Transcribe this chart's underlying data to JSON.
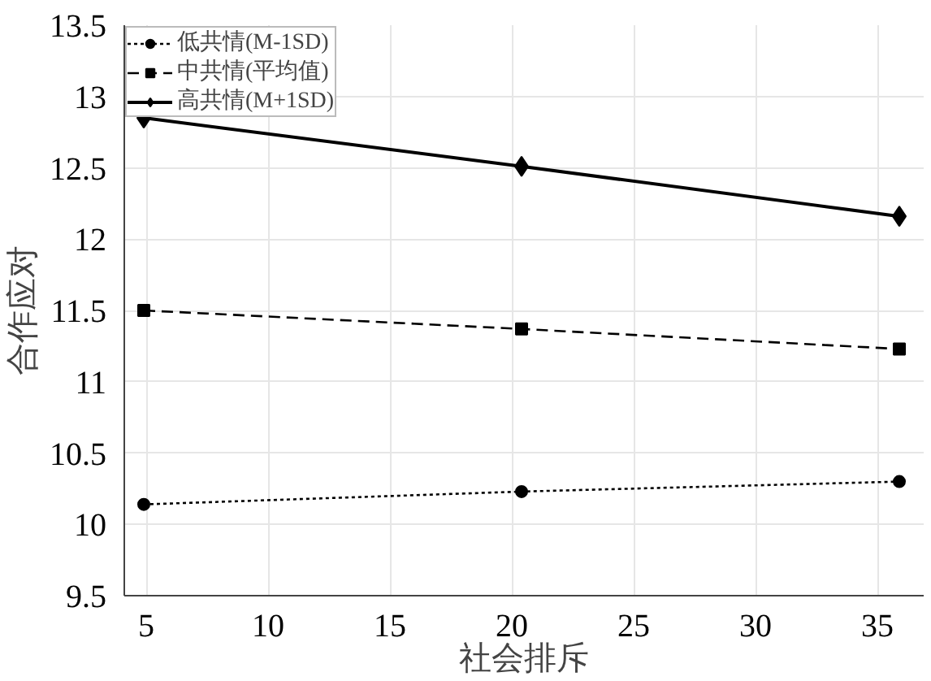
{
  "chart_data": {
    "type": "line",
    "xlabel": "社会排斥",
    "ylabel": "合作应对",
    "xlim": [
      4.1,
      36.9
    ],
    "ylim": [
      9.5,
      13.5
    ],
    "xticks": [
      5,
      10,
      15,
      20,
      25,
      30,
      35
    ],
    "yticks": [
      9.5,
      10,
      10.5,
      11,
      11.5,
      12,
      12.5,
      13,
      13.5
    ],
    "grid": true,
    "legend": "top left",
    "x": [
      4.9,
      20.4,
      35.9
    ],
    "series": [
      {
        "name": "低共情(M-1SD)",
        "color": "#000000",
        "values": [
          10.14,
          10.23,
          10.3
        ],
        "marker": "circle",
        "line_style": "dotted"
      },
      {
        "name": "中共情(平均值)",
        "color": "#000000",
        "values": [
          11.5,
          11.37,
          11.23
        ],
        "marker": "square",
        "line_style": "dashed"
      },
      {
        "name": "高共情(M+1SD)",
        "color": "#000000",
        "values": [
          12.85,
          12.51,
          12.16
        ],
        "marker": "diamond",
        "line_style": "solid"
      }
    ]
  }
}
